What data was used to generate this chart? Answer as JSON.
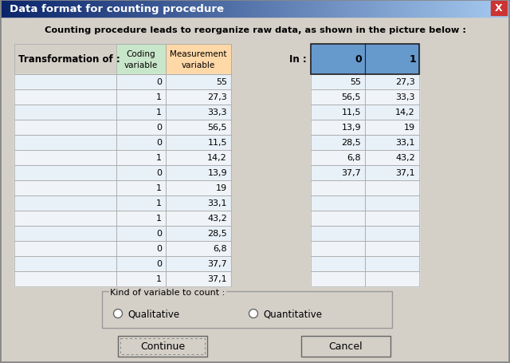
{
  "title": "Data format for counting procedure",
  "subtitle": "Counting procedure leads to reorganize raw data, as shown in the picture below :",
  "bg_color": "#d4d0c8",
  "title_bar_color_left": "#0a246a",
  "title_bar_color_right": "#a6caf0",
  "coding_col_header_color": "#c8e6c9",
  "measurement_col_header_color": "#ffd8a8",
  "right_header_color": "#6699cc",
  "left_data_coding": [
    "0",
    "1",
    "1",
    "0",
    "0",
    "1",
    "0",
    "1",
    "1",
    "1",
    "0",
    "0",
    "0",
    "1"
  ],
  "left_data_measurement": [
    "55",
    "27,3",
    "33,3",
    "56,5",
    "11,5",
    "14,2",
    "13,9",
    "19",
    "33,1",
    "43,2",
    "28,5",
    "6,8",
    "37,7",
    "37,1"
  ],
  "right_col0": [
    "55",
    "56,5",
    "11,5",
    "13,9",
    "28,5",
    "6,8",
    "37,7"
  ],
  "right_col1": [
    "27,3",
    "33,3",
    "14,2",
    "19",
    "33,1",
    "43,2",
    "37,1"
  ],
  "table_line_color": "#aaaaaa",
  "cell_bg_even": "#e8f0f8",
  "cell_bg_odd": "#f0f4f8",
  "radio_label1": "Qualitative",
  "radio_label2": "Quantitative",
  "group_label": "Kind of variable to count :",
  "btn1": "Continue",
  "btn2": "Cancel"
}
